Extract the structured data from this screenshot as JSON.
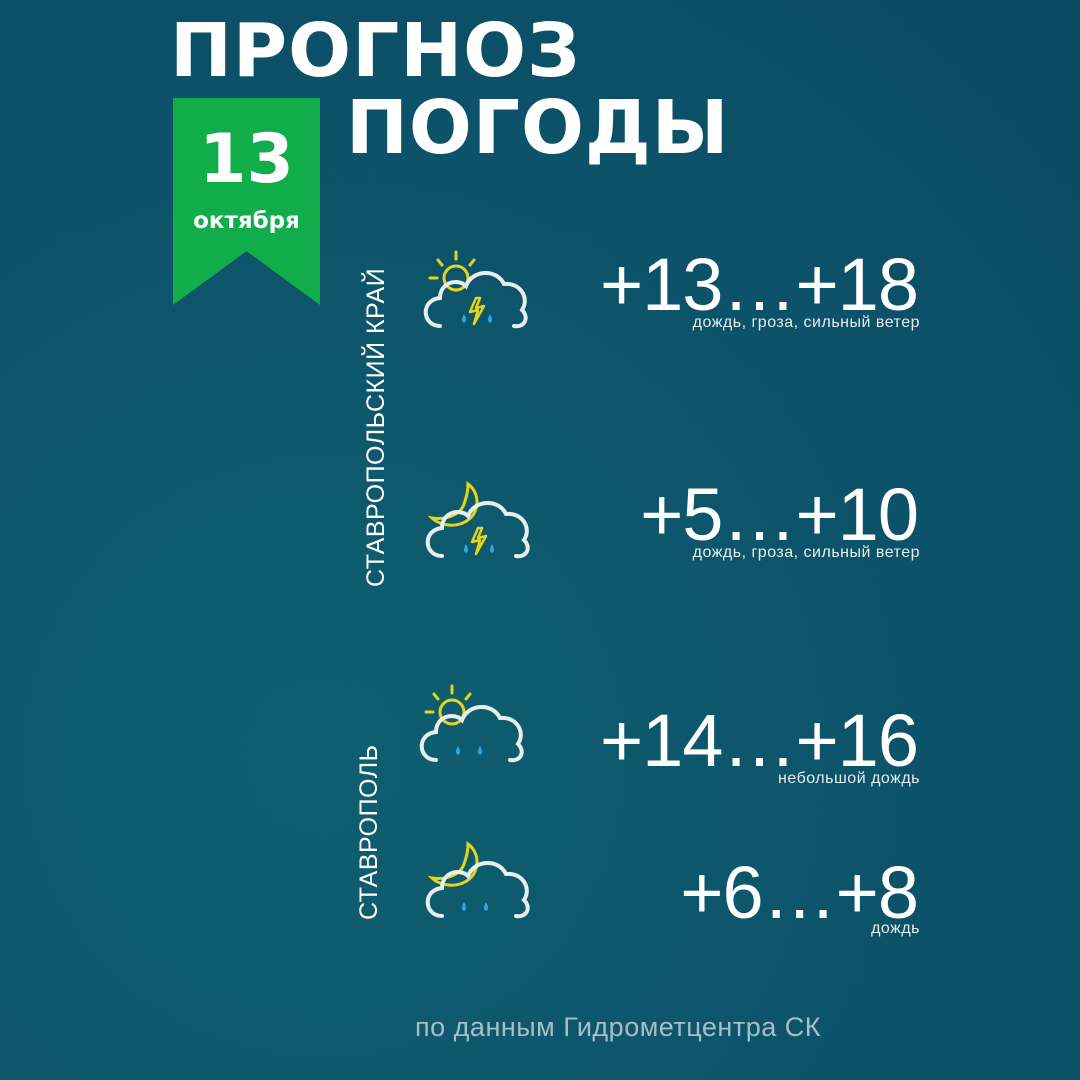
{
  "header": {
    "title_line1": "ПРОГНОЗ",
    "title_line2": "ПОГОДЫ"
  },
  "date": {
    "day": "13",
    "month": "октября",
    "ribbon_color": "#12ad4b"
  },
  "regions": [
    {
      "label": "СТАВРОПОЛЬСКИЙ КРАЙ",
      "forecasts": [
        {
          "period_icon": "sun-cloud-thunder-rain-icon",
          "temp": "+13…+18",
          "desc": "дождь, гроза, сильный ветер"
        },
        {
          "period_icon": "moon-cloud-thunder-rain-icon",
          "temp": "+5…+10",
          "desc": "дождь, гроза, сильный ветер"
        }
      ]
    },
    {
      "label": "СТАВРОПОЛЬ",
      "forecasts": [
        {
          "period_icon": "sun-cloud-rain-icon",
          "temp": "+14…+16",
          "desc": "небольшой дождь"
        },
        {
          "period_icon": "moon-cloud-rain-icon",
          "temp": "+6…+8",
          "desc": "дождь"
        }
      ]
    }
  ],
  "footer": {
    "source": "по данным Гидрометцентра СК"
  },
  "colors": {
    "background": "#0d566b",
    "accent_green": "#12ad4b",
    "sun_moon": "#e3d51c",
    "rain": "#2aa8e0"
  }
}
